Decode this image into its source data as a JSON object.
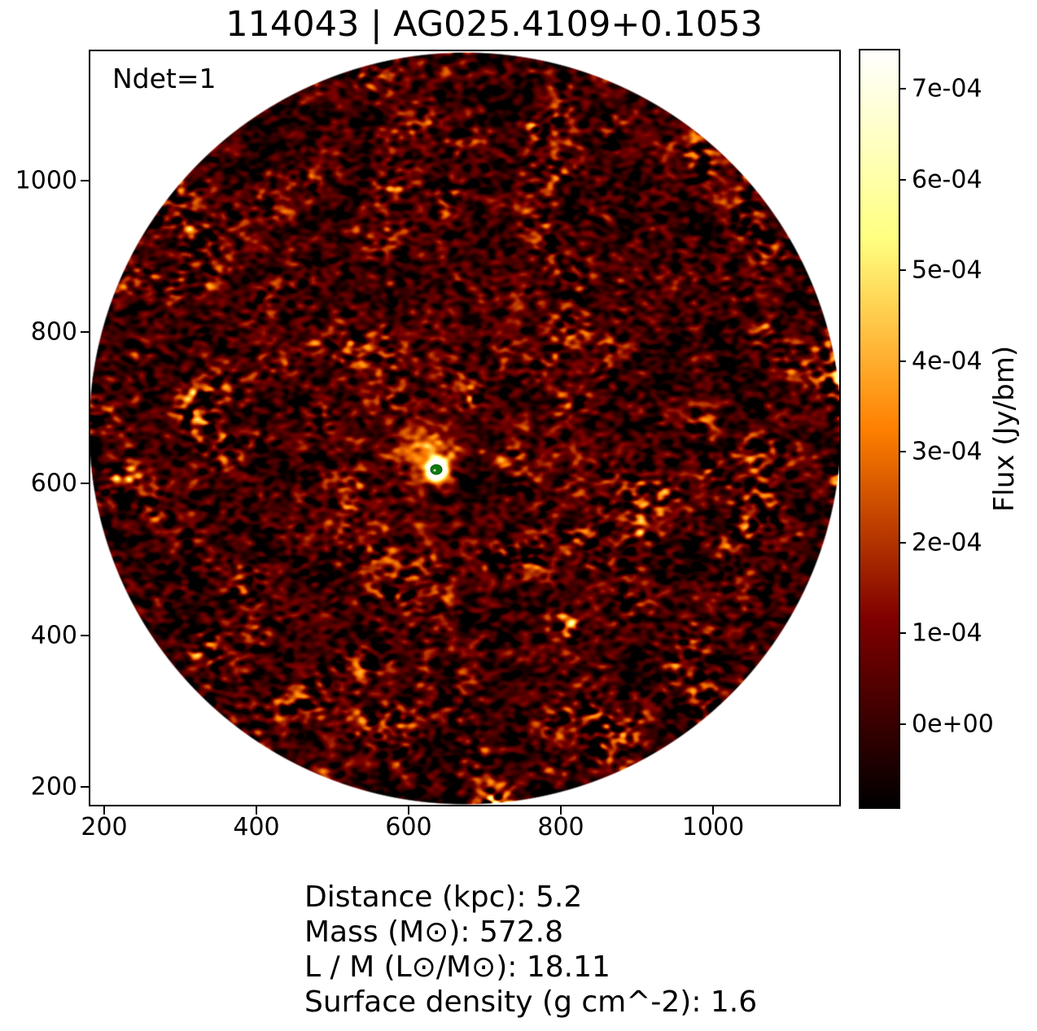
{
  "title": "114043 | AG025.4109+0.1053",
  "annotation": "Ndet=1",
  "axes": {
    "x_tick_labels": [
      "200",
      "400",
      "600",
      "800",
      "1000"
    ],
    "y_tick_labels": [
      "1000",
      "800",
      "600",
      "400",
      "200"
    ]
  },
  "colorbar": {
    "label": "Flux (Jy/bm)",
    "tick_labels": [
      "7e-04",
      "6e-04",
      "5e-04",
      "4e-04",
      "3e-04",
      "2e-04",
      "1e-04",
      "0e+00"
    ],
    "colormap_stops": [
      "#000000",
      "#800000",
      "#ff8000",
      "#ffff80",
      "#ffffff"
    ]
  },
  "info_lines": [
    "Distance (kpc): 5.2",
    "Mass (M⊙): 572.8",
    "L / M (L⊙/M⊙): 18.11",
    "Surface density (g cm^-2): 1.6"
  ],
  "chart_data": {
    "type": "heatmap",
    "title": "114043 | AG025.4109+0.1053",
    "colormap": "afmhot",
    "xlim": [
      181,
      1167
    ],
    "ylim": [
      171,
      1173
    ],
    "x_ticks": [
      200,
      400,
      600,
      800,
      1000
    ],
    "y_ticks": [
      200,
      400,
      600,
      800,
      1000
    ],
    "grid": false,
    "colorbar": {
      "label": "Flux (Jy/bm)",
      "tick_values": [
        0.0,
        0.0001,
        0.0002,
        0.0003,
        0.0004,
        0.0005,
        0.0006,
        0.0007
      ],
      "vmin": -9.2e-05,
      "vmax": 0.000744
    },
    "field": {
      "shape": "circle",
      "center_x": 674,
      "center_y": 672,
      "radius": 499,
      "background_outside": "#ffffff",
      "noise_rms_flux": 5e-05
    },
    "ndet": 1,
    "detections": [
      {
        "x": 637,
        "y": 617,
        "marker": "filled-green-ellipse",
        "color": "#0e7c0e"
      }
    ],
    "source_region": {
      "peak_flux": 0.00074,
      "description": "saturated white compact source at detection position with diagonal sidelobe cross and extended yellow halo up-left of peak"
    },
    "properties": {
      "distance_kpc": 5.2,
      "mass_msun": 572.8,
      "l_over_m_lsun_msun": 18.11,
      "surface_density_g_cm2": 1.6
    }
  }
}
